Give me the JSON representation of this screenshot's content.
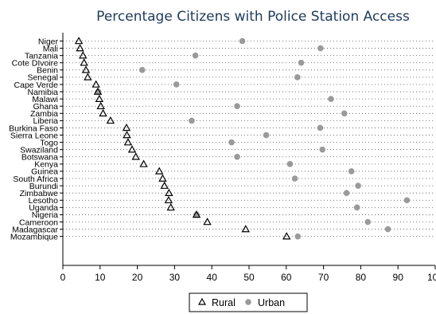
{
  "chart_data": {
    "type": "scatter",
    "title": "Percentage Citizens with Police Station Access",
    "categories": [
      "Niger",
      "Mali",
      "Tanzania",
      "Cote DIvoire",
      "Benin",
      "Senegal",
      "Cape Verde",
      "Namibia",
      "Malawi",
      "Ghana",
      "Zambia",
      "Liberia",
      "Burkina Faso",
      "Sierra Leone",
      "Togo",
      "Swaziland",
      "Botswana",
      "Kenya",
      "Guinea",
      "South Africa",
      "Burundi",
      "Zimbabwe",
      "Lesotho",
      "Uganda",
      "Nigeria",
      "Cameroon",
      "Madagascar",
      "Mozambique"
    ],
    "series": [
      {
        "name": "Rural",
        "marker": "triangle",
        "color": "#000000",
        "values": [
          4.3,
          4.6,
          5.4,
          5.7,
          6.2,
          6.7,
          8.9,
          9.4,
          9.8,
          10.2,
          10.8,
          12.8,
          17.1,
          17.2,
          17.5,
          18.6,
          19.6,
          21.7,
          25.9,
          26.8,
          27.3,
          28.5,
          28.4,
          29.0,
          35.9,
          38.8,
          49.1,
          60.1
        ]
      },
      {
        "name": "Urban",
        "marker": "circle",
        "color": "#9a9a9a",
        "values": [
          48.2,
          69.2,
          35.6,
          64.0,
          21.3,
          63.0,
          30.5,
          9.5,
          72.0,
          46.8,
          75.6,
          34.6,
          69.1,
          54.6,
          45.3,
          69.7,
          46.8,
          61.0,
          77.5,
          62.3,
          79.3,
          76.2,
          92.4,
          79.0,
          35.9,
          81.9,
          87.3,
          63.1
        ]
      }
    ],
    "xlim": [
      0,
      100
    ],
    "xticks": [
      0,
      10,
      20,
      30,
      40,
      50,
      60,
      70,
      80,
      90,
      100
    ],
    "grid": "dotted rows",
    "legend": "bottom"
  }
}
